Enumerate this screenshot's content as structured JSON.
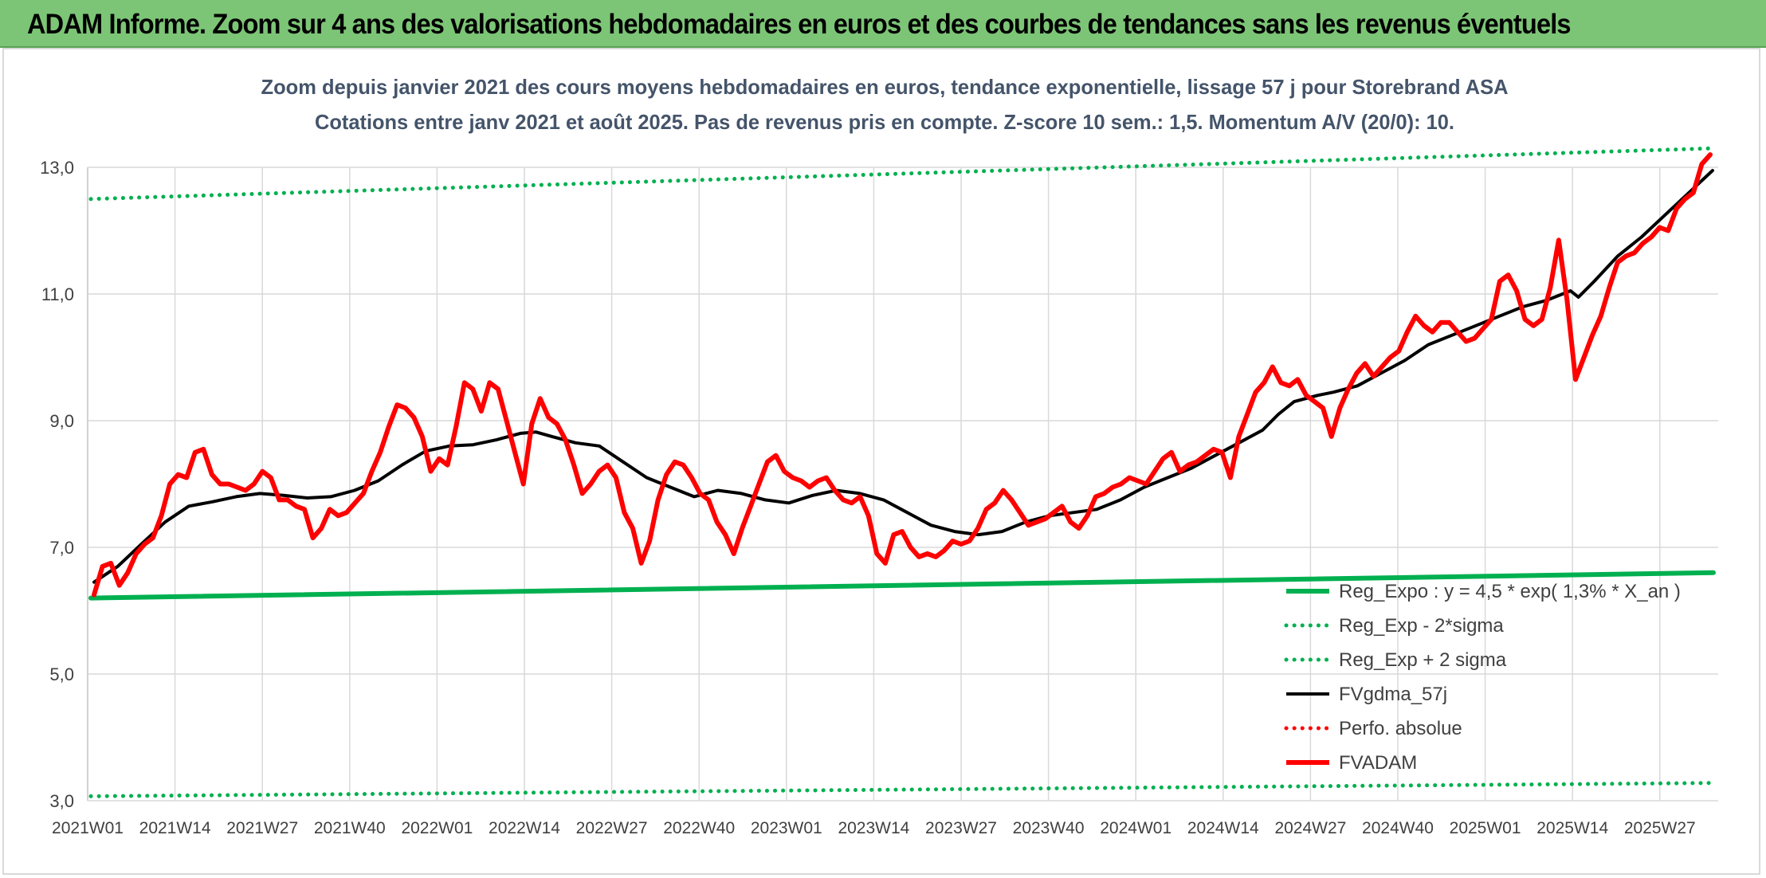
{
  "banner": {
    "title": "ADAM Informe. Zoom sur 4 ans des valorisations hebdomadaires en euros et des courbes de tendances sans les revenus éventuels"
  },
  "colors": {
    "banner_bg": "#7cc576",
    "regression": "#00b050",
    "fvadam": "#ff0000",
    "fvgdma": "#000000",
    "perfo": "#ff0000",
    "grid": "#d9d9d9",
    "text": "#404040",
    "title_text": "#44546a"
  },
  "chart_data": {
    "type": "line",
    "title_lines": [
      "Zoom depuis janvier 2021 des cours moyens hebdomadaires en euros, tendance exponentielle, lissage 57 j pour Storebrand ASA",
      "Cotations entre janv 2021 et août 2025. Pas de revenus pris en compte. Z-score 10 sem.: 1,5. Momentum A/V (20/0): 10."
    ],
    "ylim": [
      3.0,
      13.0
    ],
    "yticks": [
      "3,0",
      "5,0",
      "7,0",
      "9,0",
      "11,0",
      "13,0"
    ],
    "grid": true,
    "legend_position": "bottom-right",
    "x_categories": [
      "2021W01",
      "2021W14",
      "2021W27",
      "2021W40",
      "2022W01",
      "2022W14",
      "2022W27",
      "2022W40",
      "2023W01",
      "2023W14",
      "2023W27",
      "2023W40",
      "2024W01",
      "2024W14",
      "2024W27",
      "2024W40",
      "2025W01",
      "2025W14",
      "2025W27"
    ],
    "x_domain_weeks": [
      0,
      189
    ],
    "series": [
      {
        "name": "Reg_Expo : y = 4,5 * exp( 1,3% *  X_an )",
        "style": "solid-thick",
        "color": "#00b050",
        "points": [
          [
            0,
            6.2
          ],
          [
            189,
            6.6
          ]
        ]
      },
      {
        "name": "Reg_Exp - 2*sigma",
        "style": "dotted",
        "color": "#00b050",
        "points": [
          [
            0,
            3.07
          ],
          [
            189,
            3.28
          ]
        ]
      },
      {
        "name": "Reg_Exp + 2 sigma",
        "style": "dotted",
        "color": "#00b050",
        "points": [
          [
            0,
            12.5
          ],
          [
            189,
            13.3
          ]
        ]
      },
      {
        "name": "FVgdma_57j",
        "style": "solid",
        "color": "#000000",
        "points": [
          [
            0,
            6.45
          ],
          [
            3,
            6.7
          ],
          [
            6,
            7.05
          ],
          [
            9,
            7.4
          ],
          [
            12,
            7.65
          ],
          [
            15,
            7.72
          ],
          [
            18,
            7.8
          ],
          [
            21,
            7.85
          ],
          [
            24,
            7.82
          ],
          [
            27,
            7.78
          ],
          [
            30,
            7.8
          ],
          [
            33,
            7.9
          ],
          [
            36,
            8.05
          ],
          [
            39,
            8.3
          ],
          [
            42,
            8.52
          ],
          [
            45,
            8.6
          ],
          [
            48,
            8.62
          ],
          [
            51,
            8.7
          ],
          [
            54,
            8.8
          ],
          [
            56,
            8.82
          ],
          [
            58,
            8.75
          ],
          [
            61,
            8.65
          ],
          [
            64,
            8.6
          ],
          [
            67,
            8.35
          ],
          [
            70,
            8.1
          ],
          [
            73,
            7.95
          ],
          [
            76,
            7.8
          ],
          [
            79,
            7.9
          ],
          [
            82,
            7.85
          ],
          [
            85,
            7.75
          ],
          [
            88,
            7.7
          ],
          [
            91,
            7.82
          ],
          [
            94,
            7.9
          ],
          [
            97,
            7.85
          ],
          [
            100,
            7.75
          ],
          [
            103,
            7.55
          ],
          [
            106,
            7.35
          ],
          [
            109,
            7.25
          ],
          [
            112,
            7.2
          ],
          [
            115,
            7.25
          ],
          [
            118,
            7.4
          ],
          [
            121,
            7.5
          ],
          [
            124,
            7.55
          ],
          [
            127,
            7.6
          ],
          [
            130,
            7.75
          ],
          [
            133,
            7.95
          ],
          [
            136,
            8.1
          ],
          [
            139,
            8.25
          ],
          [
            142,
            8.45
          ],
          [
            145,
            8.65
          ],
          [
            148,
            8.85
          ],
          [
            150,
            9.1
          ],
          [
            152,
            9.3
          ],
          [
            155,
            9.4
          ],
          [
            157,
            9.45
          ],
          [
            160,
            9.55
          ],
          [
            163,
            9.75
          ],
          [
            166,
            9.95
          ],
          [
            169,
            10.2
          ],
          [
            172,
            10.35
          ],
          [
            175,
            10.5
          ],
          [
            178,
            10.65
          ],
          [
            181,
            10.8
          ],
          [
            184,
            10.9
          ],
          [
            187,
            11.05
          ],
          [
            188,
            10.95
          ],
          [
            190,
            11.2
          ],
          [
            193,
            11.6
          ],
          [
            196,
            11.9
          ],
          [
            199,
            12.25
          ],
          [
            202,
            12.6
          ],
          [
            205,
            12.95
          ]
        ]
      },
      {
        "name": "Perfo. absolue",
        "style": "dotted",
        "color": "#ff0000",
        "points": []
      },
      {
        "name": "FVADAM",
        "style": "solid-thick",
        "color": "#ff0000",
        "points": [
          [
            0,
            6.25
          ],
          [
            1,
            6.7
          ],
          [
            2,
            6.75
          ],
          [
            3,
            6.4
          ],
          [
            4,
            6.6
          ],
          [
            5,
            6.9
          ],
          [
            6,
            7.05
          ],
          [
            7,
            7.15
          ],
          [
            8,
            7.5
          ],
          [
            9,
            8.0
          ],
          [
            10,
            8.15
          ],
          [
            11,
            8.1
          ],
          [
            12,
            8.5
          ],
          [
            13,
            8.55
          ],
          [
            14,
            8.15
          ],
          [
            15,
            8.0
          ],
          [
            16,
            8.0
          ],
          [
            17,
            7.95
          ],
          [
            18,
            7.9
          ],
          [
            19,
            8.0
          ],
          [
            20,
            8.2
          ],
          [
            21,
            8.1
          ],
          [
            22,
            7.75
          ],
          [
            23,
            7.75
          ],
          [
            24,
            7.65
          ],
          [
            25,
            7.6
          ],
          [
            26,
            7.15
          ],
          [
            27,
            7.3
          ],
          [
            28,
            7.6
          ],
          [
            29,
            7.5
          ],
          [
            30,
            7.55
          ],
          [
            31,
            7.7
          ],
          [
            32,
            7.85
          ],
          [
            33,
            8.2
          ],
          [
            34,
            8.5
          ],
          [
            35,
            8.9
          ],
          [
            36,
            9.25
          ],
          [
            37,
            9.2
          ],
          [
            38,
            9.05
          ],
          [
            39,
            8.75
          ],
          [
            40,
            8.2
          ],
          [
            41,
            8.4
          ],
          [
            42,
            8.3
          ],
          [
            43,
            8.9
          ],
          [
            44,
            9.6
          ],
          [
            45,
            9.5
          ],
          [
            46,
            9.15
          ],
          [
            47,
            9.6
          ],
          [
            48,
            9.5
          ],
          [
            49,
            9.0
          ],
          [
            50,
            8.5
          ],
          [
            51,
            8.0
          ],
          [
            52,
            8.95
          ],
          [
            53,
            9.35
          ],
          [
            54,
            9.05
          ],
          [
            55,
            8.95
          ],
          [
            56,
            8.7
          ],
          [
            57,
            8.3
          ],
          [
            58,
            7.85
          ],
          [
            59,
            8.0
          ],
          [
            60,
            8.2
          ],
          [
            61,
            8.3
          ],
          [
            62,
            8.1
          ],
          [
            63,
            7.55
          ],
          [
            64,
            7.3
          ],
          [
            65,
            6.75
          ],
          [
            66,
            7.1
          ],
          [
            67,
            7.75
          ],
          [
            68,
            8.15
          ],
          [
            69,
            8.35
          ],
          [
            70,
            8.3
          ],
          [
            71,
            8.1
          ],
          [
            72,
            7.85
          ],
          [
            73,
            7.75
          ],
          [
            74,
            7.4
          ],
          [
            75,
            7.2
          ],
          [
            76,
            6.9
          ],
          [
            77,
            7.3
          ],
          [
            78,
            7.65
          ],
          [
            79,
            8.0
          ],
          [
            80,
            8.35
          ],
          [
            81,
            8.45
          ],
          [
            82,
            8.2
          ],
          [
            83,
            8.1
          ],
          [
            84,
            8.05
          ],
          [
            85,
            7.95
          ],
          [
            86,
            8.05
          ],
          [
            87,
            8.1
          ],
          [
            88,
            7.9
          ],
          [
            89,
            7.75
          ],
          [
            90,
            7.7
          ],
          [
            91,
            7.8
          ],
          [
            92,
            7.5
          ],
          [
            93,
            6.9
          ],
          [
            94,
            6.75
          ],
          [
            95,
            7.2
          ],
          [
            96,
            7.25
          ],
          [
            97,
            7.0
          ],
          [
            98,
            6.85
          ],
          [
            99,
            6.9
          ],
          [
            100,
            6.85
          ],
          [
            101,
            6.95
          ],
          [
            102,
            7.1
          ],
          [
            103,
            7.05
          ],
          [
            104,
            7.1
          ],
          [
            105,
            7.3
          ],
          [
            106,
            7.6
          ],
          [
            107,
            7.7
          ],
          [
            108,
            7.9
          ],
          [
            109,
            7.75
          ],
          [
            110,
            7.55
          ],
          [
            111,
            7.35
          ],
          [
            112,
            7.4
          ],
          [
            113,
            7.45
          ],
          [
            114,
            7.55
          ],
          [
            115,
            7.65
          ],
          [
            116,
            7.4
          ],
          [
            117,
            7.3
          ],
          [
            118,
            7.5
          ],
          [
            119,
            7.8
          ],
          [
            120,
            7.85
          ],
          [
            121,
            7.95
          ],
          [
            122,
            8.0
          ],
          [
            123,
            8.1
          ],
          [
            124,
            8.05
          ],
          [
            125,
            8.0
          ],
          [
            126,
            8.2
          ],
          [
            127,
            8.4
          ],
          [
            128,
            8.5
          ],
          [
            129,
            8.2
          ],
          [
            130,
            8.3
          ],
          [
            131,
            8.35
          ],
          [
            132,
            8.45
          ],
          [
            133,
            8.55
          ],
          [
            134,
            8.5
          ],
          [
            135,
            8.1
          ],
          [
            136,
            8.75
          ],
          [
            137,
            9.1
          ],
          [
            138,
            9.45
          ],
          [
            139,
            9.6
          ],
          [
            140,
            9.85
          ],
          [
            141,
            9.6
          ],
          [
            142,
            9.55
          ],
          [
            143,
            9.65
          ],
          [
            144,
            9.4
          ],
          [
            145,
            9.3
          ],
          [
            146,
            9.2
          ],
          [
            147,
            8.75
          ],
          [
            148,
            9.2
          ],
          [
            149,
            9.5
          ],
          [
            150,
            9.75
          ],
          [
            151,
            9.9
          ],
          [
            152,
            9.7
          ],
          [
            153,
            9.85
          ],
          [
            154,
            10.0
          ],
          [
            155,
            10.1
          ],
          [
            156,
            10.4
          ],
          [
            157,
            10.65
          ],
          [
            158,
            10.5
          ],
          [
            159,
            10.4
          ],
          [
            160,
            10.55
          ],
          [
            161,
            10.55
          ],
          [
            162,
            10.4
          ],
          [
            163,
            10.25
          ],
          [
            164,
            10.3
          ],
          [
            165,
            10.45
          ],
          [
            166,
            10.6
          ],
          [
            167,
            11.2
          ],
          [
            168,
            11.3
          ],
          [
            169,
            11.05
          ],
          [
            170,
            10.6
          ],
          [
            171,
            10.5
          ],
          [
            172,
            10.6
          ],
          [
            173,
            11.1
          ],
          [
            174,
            11.85
          ],
          [
            175,
            10.9
          ],
          [
            176,
            9.65
          ],
          [
            177,
            10.0
          ],
          [
            178,
            10.35
          ],
          [
            179,
            10.65
          ],
          [
            180,
            11.1
          ],
          [
            181,
            11.5
          ],
          [
            182,
            11.6
          ],
          [
            183,
            11.65
          ],
          [
            184,
            11.8
          ],
          [
            185,
            11.9
          ],
          [
            186,
            12.05
          ],
          [
            187,
            12.0
          ],
          [
            188,
            12.35
          ],
          [
            189,
            12.5
          ],
          [
            190,
            12.6
          ],
          [
            191,
            13.05
          ],
          [
            192,
            13.2
          ]
        ]
      }
    ]
  }
}
